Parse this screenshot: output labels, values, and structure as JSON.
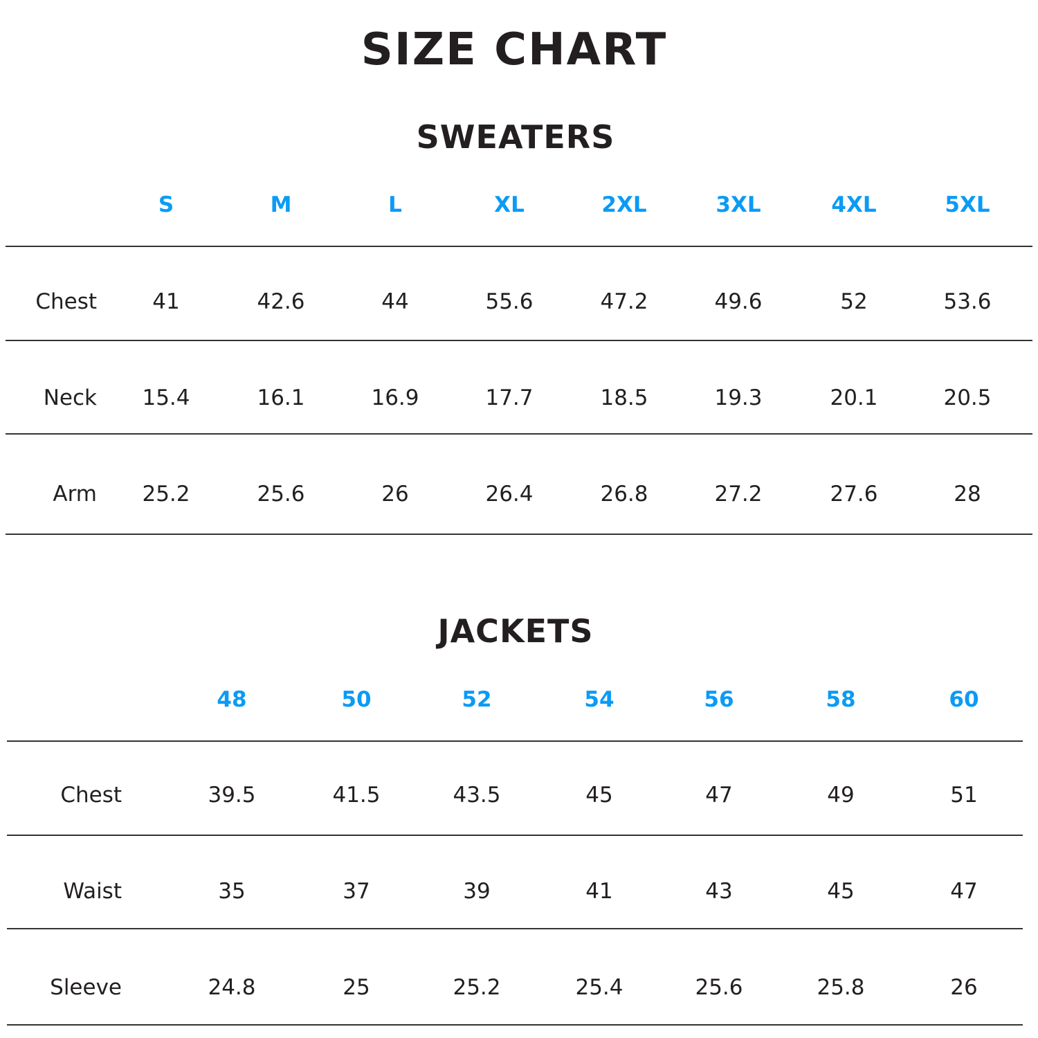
{
  "title": "SIZE CHART",
  "accent_color": "#0a9bf5",
  "sweaters": {
    "title": "SWEATERS",
    "sizes": [
      "S",
      "M",
      "L",
      "XL",
      "2XL",
      "3XL",
      "4XL",
      "5XL"
    ],
    "rows": [
      {
        "label": "Chest",
        "values": [
          "41",
          "42.6",
          "44",
          "55.6",
          "47.2",
          "49.6",
          "52",
          "53.6"
        ]
      },
      {
        "label": "Neck",
        "values": [
          "15.4",
          "16.1",
          "16.9",
          "17.7",
          "18.5",
          "19.3",
          "20.1",
          "20.5"
        ]
      },
      {
        "label": "Arm",
        "values": [
          "25.2",
          "25.6",
          "26",
          "26.4",
          "26.8",
          "27.2",
          "27.6",
          "28"
        ]
      }
    ]
  },
  "jackets": {
    "title": "JACKETS",
    "sizes": [
      "48",
      "50",
      "52",
      "54",
      "56",
      "58",
      "60"
    ],
    "rows": [
      {
        "label": "Chest",
        "values": [
          "39.5",
          "41.5",
          "43.5",
          "45",
          "47",
          "49",
          "51"
        ]
      },
      {
        "label": "Waist",
        "values": [
          "35",
          "37",
          "39",
          "41",
          "43",
          "45",
          "47"
        ]
      },
      {
        "label": "Sleeve",
        "values": [
          "24.8",
          "25",
          "25.2",
          "25.4",
          "25.6",
          "25.8",
          "26"
        ]
      }
    ]
  }
}
